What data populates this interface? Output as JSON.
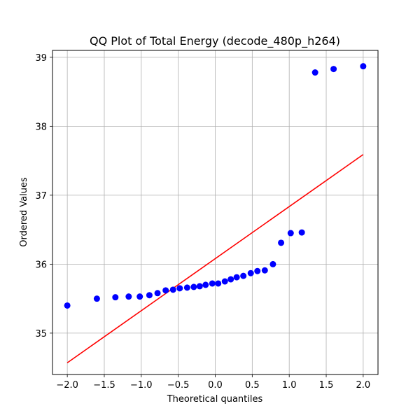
{
  "chart_data": {
    "type": "scatter",
    "title": "QQ Plot of Total Energy (decode_480p_h264)",
    "xlabel": "Theoretical quantiles",
    "ylabel": "Ordered Values",
    "xlim": [
      -2.2,
      2.2
    ],
    "ylim": [
      34.4,
      39.1
    ],
    "xticks": [
      -2.0,
      -1.5,
      -1.0,
      -0.5,
      0.0,
      0.5,
      1.0,
      1.5,
      2.0
    ],
    "xtick_labels": [
      "−2.0",
      "−1.5",
      "−1.0",
      "−0.5",
      "0.0",
      "0.5",
      "1.0",
      "1.5",
      "2.0"
    ],
    "yticks": [
      35,
      36,
      37,
      38,
      39
    ],
    "ytick_labels": [
      "35",
      "36",
      "37",
      "38",
      "39"
    ],
    "grid": true,
    "points": {
      "color": "#0000ff",
      "x": [
        -2.0,
        -1.6,
        -1.35,
        -1.17,
        -1.02,
        -0.89,
        -0.78,
        -0.67,
        -0.57,
        -0.48,
        -0.38,
        -0.29,
        -0.21,
        -0.13,
        -0.04,
        0.04,
        0.13,
        0.21,
        0.29,
        0.38,
        0.48,
        0.57,
        0.67,
        0.78,
        0.89,
        1.02,
        1.17,
        1.35,
        1.6,
        2.0
      ],
      "y": [
        35.4,
        35.5,
        35.52,
        35.53,
        35.53,
        35.55,
        35.58,
        35.62,
        35.63,
        35.65,
        35.66,
        35.67,
        35.68,
        35.7,
        35.72,
        35.72,
        35.75,
        35.78,
        35.81,
        35.83,
        35.87,
        35.9,
        35.91,
        36.0,
        36.31,
        36.45,
        36.46,
        38.78,
        38.83,
        38.87
      ]
    },
    "fit_line": {
      "color": "#ff0000",
      "x": [
        -2.0,
        2.0
      ],
      "y": [
        34.57,
        37.59
      ]
    }
  }
}
